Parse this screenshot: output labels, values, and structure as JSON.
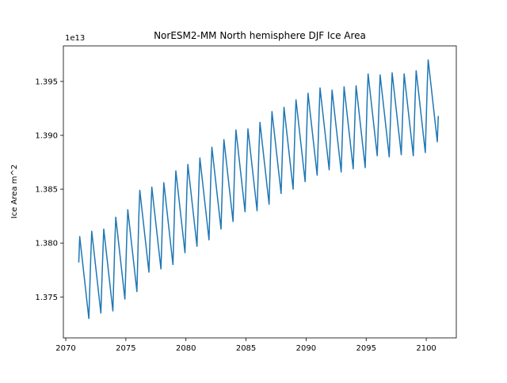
{
  "chart_data": {
    "type": "line",
    "title": "NorESM2-MM North hemisphere DJF Ice Area",
    "ylabel": "Ice Area m^2",
    "offset_label": "1e13",
    "color": "#1f77b4",
    "xlim": [
      2069.8,
      2102.5
    ],
    "ylim": [
      1.3712,
      1.3983
    ],
    "xticks": [
      2070,
      2075,
      2080,
      2085,
      2090,
      2095,
      2100
    ],
    "yticks": [
      1.375,
      {
        "value": 1.38,
        "label": "1.380"
      },
      1.385,
      {
        "value": 1.39,
        "label": "1.390"
      },
      1.395
    ],
    "x": [
      2071.08,
      2071.16,
      2071.92,
      2072.08,
      2072.16,
      2072.92,
      2073.08,
      2073.16,
      2073.92,
      2074.08,
      2074.16,
      2074.92,
      2075.08,
      2075.16,
      2075.92,
      2076.08,
      2076.16,
      2076.92,
      2077.08,
      2077.16,
      2077.92,
      2078.08,
      2078.16,
      2078.92,
      2079.08,
      2079.16,
      2079.92,
      2080.08,
      2080.16,
      2080.92,
      2081.08,
      2081.16,
      2081.92,
      2082.08,
      2082.16,
      2082.92,
      2083.08,
      2083.16,
      2083.92,
      2084.08,
      2084.16,
      2084.92,
      2085.08,
      2085.16,
      2085.92,
      2086.08,
      2086.16,
      2086.92,
      2087.08,
      2087.16,
      2087.92,
      2088.08,
      2088.16,
      2088.92,
      2089.08,
      2089.16,
      2089.92,
      2090.08,
      2090.16,
      2090.92,
      2091.08,
      2091.16,
      2091.92,
      2092.08,
      2092.16,
      2092.92,
      2093.08,
      2093.16,
      2093.92,
      2094.08,
      2094.16,
      2094.92,
      2095.08,
      2095.16,
      2095.92,
      2096.08,
      2096.16,
      2096.92,
      2097.08,
      2097.16,
      2097.92,
      2098.08,
      2098.16,
      2098.92,
      2099.08,
      2099.16,
      2099.92,
      2100.08,
      2100.16,
      2100.92,
      2101.0
    ],
    "values": [
      1.3782,
      1.3806,
      1.373,
      1.3787,
      1.3811,
      1.3735,
      1.3789,
      1.3813,
      1.3737,
      1.38,
      1.3824,
      1.3748,
      1.3807,
      1.3831,
      1.3755,
      1.3825,
      1.3849,
      1.3773,
      1.3828,
      1.3852,
      1.3776,
      1.3832,
      1.3856,
      1.378,
      1.3843,
      1.3867,
      1.3791,
      1.3849,
      1.3873,
      1.3797,
      1.3855,
      1.3879,
      1.3803,
      1.3865,
      1.3889,
      1.3813,
      1.3872,
      1.3896,
      1.382,
      1.3881,
      1.3905,
      1.3829,
      1.3882,
      1.3906,
      1.383,
      1.3888,
      1.3912,
      1.3836,
      1.3898,
      1.3922,
      1.3846,
      1.3902,
      1.3926,
      1.385,
      1.3909,
      1.3933,
      1.3857,
      1.3915,
      1.3939,
      1.3863,
      1.392,
      1.3944,
      1.3868,
      1.3918,
      1.3942,
      1.3866,
      1.3921,
      1.3945,
      1.3869,
      1.3922,
      1.3946,
      1.387,
      1.3933,
      1.3957,
      1.3881,
      1.3932,
      1.3956,
      1.388,
      1.3934,
      1.3958,
      1.3882,
      1.3933,
      1.3957,
      1.3881,
      1.3936,
      1.396,
      1.3884,
      1.3946,
      1.397,
      1.3894,
      1.3918
    ]
  }
}
